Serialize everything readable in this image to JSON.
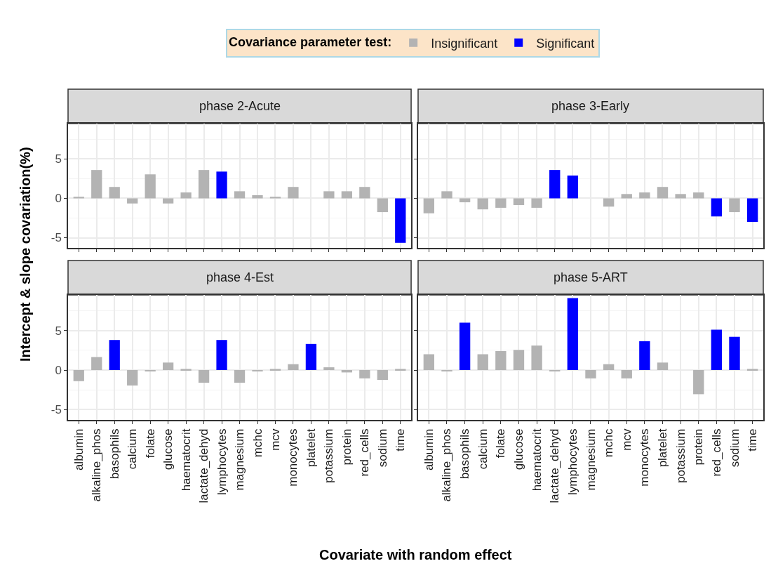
{
  "chart_data": [
    {
      "type": "bar",
      "title": "phase 2-Acute",
      "ylabel": "Intercept & slope covariation(%)",
      "xlabel": "Covariate with random effect",
      "legend_title": "Covariance parameter test:",
      "legend": "top",
      "grid": true,
      "tick_labels": "y",
      "ylim": [
        -6.3,
        9.5
      ],
      "yticks": [
        -5,
        0,
        5
      ],
      "categories": [
        "albumin",
        "alkaline_phos",
        "basophils",
        "calcium",
        "folate",
        "glucose",
        "haematocrit",
        "lactate_dehyd",
        "lymphocytes",
        "magnesium",
        "mchc",
        "mcv",
        "monocytes",
        "platelet",
        "potassium",
        "protein",
        "red_cells",
        "sodium",
        "time"
      ],
      "series": [
        {
          "name": "Insignificant",
          "color": "#b3b3b3",
          "values": [
            0.2,
            3.6,
            1.45,
            -0.65,
            3.05,
            -0.65,
            0.75,
            3.6,
            null,
            0.9,
            0.4,
            0.2,
            1.45,
            null,
            0.9,
            0.9,
            1.45,
            -1.75,
            null
          ]
        },
        {
          "name": "Significant",
          "color": "#0000ff",
          "values": [
            null,
            null,
            null,
            null,
            null,
            null,
            null,
            null,
            3.4,
            null,
            null,
            null,
            null,
            null,
            null,
            null,
            null,
            null,
            -5.65
          ]
        }
      ]
    },
    {
      "type": "bar",
      "title": "phase 3-Early",
      "grid": true,
      "tick_labels": false,
      "ylim": [
        -6.3,
        9.5
      ],
      "yticks": [
        -5,
        0,
        5
      ],
      "categories": [
        "albumin",
        "alkaline_phos",
        "basophils",
        "calcium",
        "folate",
        "glucose",
        "haematocrit",
        "lactate_dehyd",
        "lymphocytes",
        "magnesium",
        "mchc",
        "mcv",
        "monocytes",
        "platelet",
        "potassium",
        "protein",
        "red_cells",
        "sodium",
        "time"
      ],
      "series": [
        {
          "name": "Insignificant",
          "color": "#b3b3b3",
          "values": [
            -1.9,
            0.9,
            -0.5,
            -1.4,
            -1.2,
            -0.85,
            -1.2,
            null,
            null,
            null,
            -1.05,
            0.55,
            0.75,
            1.45,
            0.55,
            0.75,
            null,
            -1.75,
            null
          ]
        },
        {
          "name": "Significant",
          "color": "#0000ff",
          "values": [
            null,
            null,
            null,
            null,
            null,
            null,
            null,
            3.6,
            2.9,
            null,
            null,
            null,
            null,
            null,
            null,
            null,
            -2.3,
            null,
            -3.0
          ]
        }
      ]
    },
    {
      "type": "bar",
      "title": "phase 4-Est",
      "grid": true,
      "ylim": [
        -6.3,
        9.5
      ],
      "yticks": [
        -5,
        0,
        5
      ],
      "categories": [
        "albumin",
        "alkaline_phos",
        "basophils",
        "calcium",
        "folate",
        "glucose",
        "haematocrit",
        "lactate_dehyd",
        "lymphocytes",
        "magnesium",
        "mchc",
        "mcv",
        "monocytes",
        "platelet",
        "potassium",
        "protein",
        "red_cells",
        "sodium",
        "time"
      ],
      "series": [
        {
          "name": "Insignificant",
          "color": "#b3b3b3",
          "values": [
            -1.4,
            1.65,
            null,
            -1.95,
            -0.1,
            0.95,
            0.15,
            -1.6,
            null,
            -1.6,
            -0.1,
            0.15,
            0.75,
            null,
            0.35,
            -0.3,
            -1.05,
            -1.25,
            0.15
          ]
        },
        {
          "name": "Significant",
          "color": "#0000ff",
          "values": [
            null,
            null,
            3.8,
            null,
            null,
            null,
            null,
            null,
            3.8,
            null,
            null,
            null,
            null,
            3.3,
            null,
            null,
            null,
            null,
            null
          ]
        }
      ]
    },
    {
      "type": "bar",
      "title": "phase 5-ART",
      "grid": true,
      "tick_labels": "x",
      "ylim": [
        -6.3,
        9.5
      ],
      "yticks": [
        -5,
        0,
        5
      ],
      "categories": [
        "albumin",
        "alkaline_phos",
        "basophils",
        "calcium",
        "folate",
        "glucose",
        "haematocrit",
        "lactate_dehyd",
        "lymphocytes",
        "magnesium",
        "mchc",
        "mcv",
        "monocytes",
        "platelet",
        "potassium",
        "protein",
        "red_cells",
        "sodium",
        "time"
      ],
      "series": [
        {
          "name": "Insignificant",
          "color": "#b3b3b3",
          "values": [
            2.0,
            -0.1,
            null,
            2.0,
            2.4,
            2.55,
            3.1,
            -0.1,
            null,
            -1.05,
            0.75,
            -1.05,
            null,
            0.95,
            null,
            -3.05,
            null,
            null,
            0.15
          ]
        },
        {
          "name": "Significant",
          "color": "#0000ff",
          "values": [
            null,
            null,
            6.0,
            null,
            null,
            null,
            null,
            null,
            9.1,
            null,
            null,
            null,
            3.65,
            null,
            null,
            null,
            5.1,
            4.2,
            null
          ]
        }
      ]
    }
  ]
}
